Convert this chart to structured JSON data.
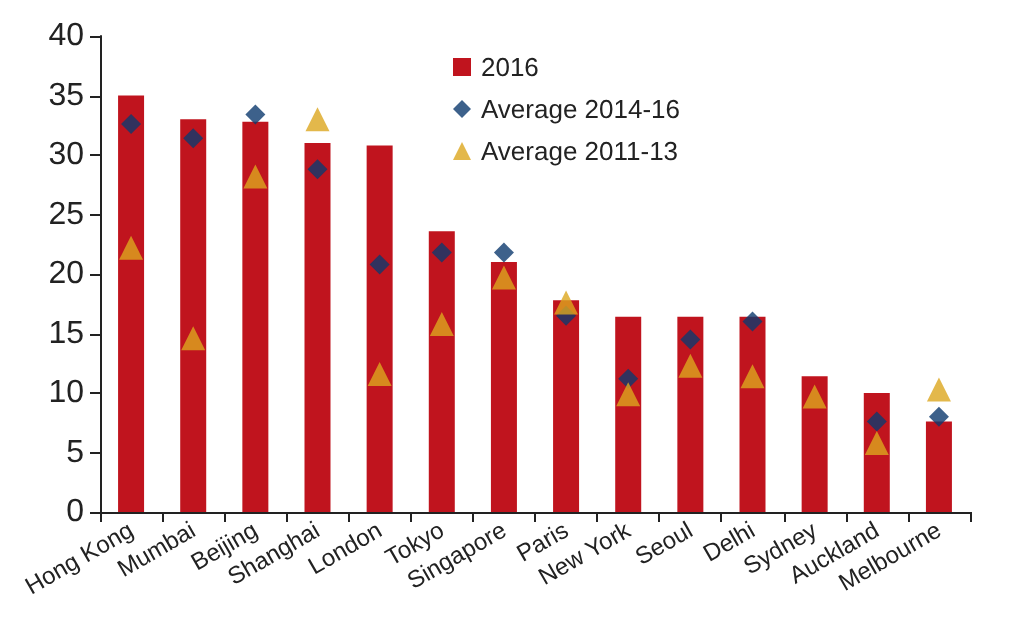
{
  "chart_data": {
    "type": "bar",
    "categories": [
      "Hong Kong",
      "Mumbai",
      "Beijing",
      "Shanghai",
      "London",
      "Tokyo",
      "Singapore",
      "Paris",
      "New York",
      "Seoul",
      "Delhi",
      "Sydney",
      "Auckland",
      "Melbourne"
    ],
    "series": [
      {
        "name": "2016",
        "color": "#c0141e",
        "values": [
          35,
          33,
          32.8,
          31,
          30.8,
          23.6,
          21,
          17.8,
          16.4,
          16.4,
          16.4,
          11.4,
          10,
          7.6
        ]
      },
      {
        "name": "Average 2014-16",
        "type": "scatter",
        "marker": "diamond",
        "color": "#0d3a6e",
        "values": [
          32.6,
          31.4,
          33.4,
          28.8,
          20.8,
          21.8,
          21.8,
          16.5,
          11.2,
          14.5,
          16,
          null,
          7.6,
          8
        ]
      },
      {
        "name": "Average 2011-13",
        "type": "scatter",
        "marker": "triangle",
        "color": "#dca61e",
        "values": [
          22.2,
          14.6,
          28.2,
          33,
          11.6,
          15.8,
          19.7,
          17.6,
          9.9,
          12.3,
          11.4,
          9.7,
          5.8,
          10.3
        ]
      }
    ],
    "ylim": [
      0,
      40
    ],
    "yticks": [
      0,
      5,
      10,
      15,
      20,
      25,
      30,
      35,
      40
    ],
    "grid": false,
    "legend": "top right"
  }
}
